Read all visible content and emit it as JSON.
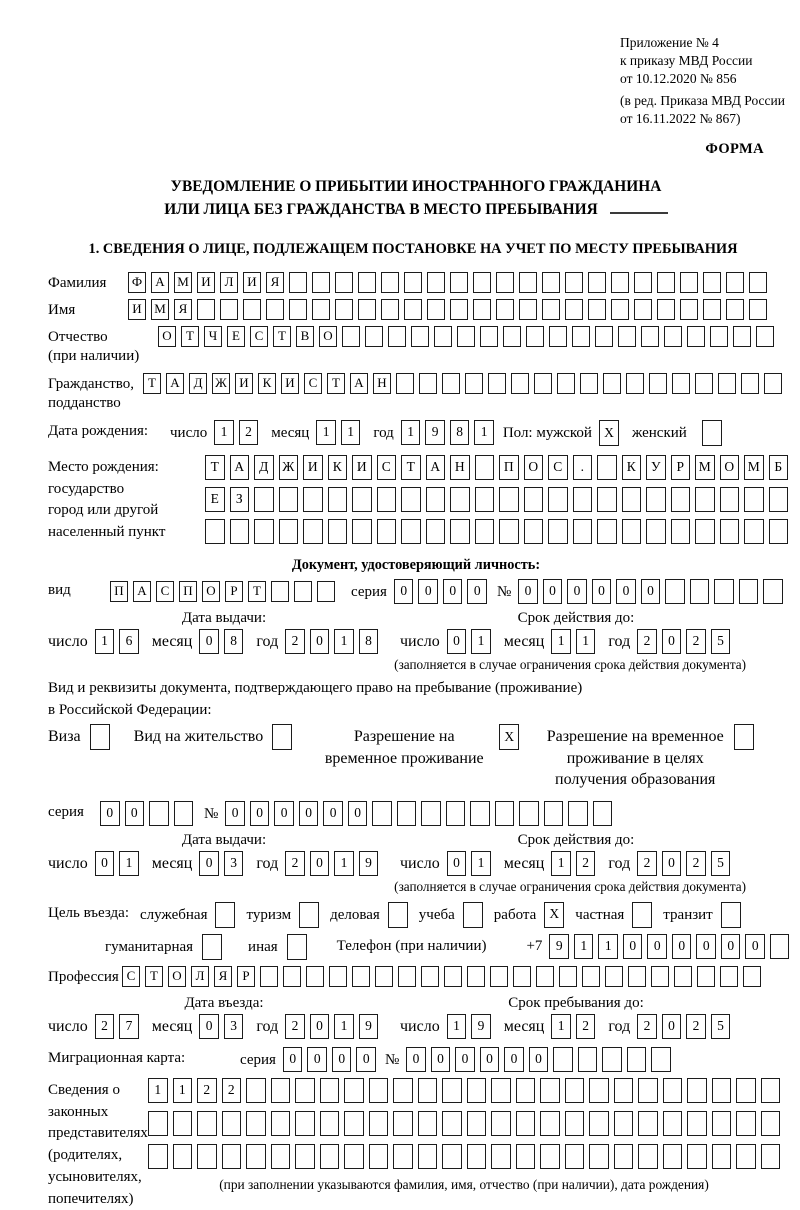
{
  "colors": {
    "text": "#000000",
    "background": "#ffffff",
    "cell_border": "#1c1c1c"
  },
  "header": {
    "lines1": [
      "Приложение № 4",
      "к приказу МВД России",
      "от 10.12.2020 № 856"
    ],
    "lines2": [
      "(в ред. Приказа МВД России",
      "от 16.11.2022 № 867)"
    ],
    "form": "ФОРМА"
  },
  "title": {
    "line1": "УВЕДОМЛЕНИЕ О ПРИБЫТИИ ИНОСТРАННОГО ГРАЖДАНИНА",
    "line2": "ИЛИ ЛИЦА БЕЗ ГРАЖДАНСТВА В МЕСТО ПРЕБЫВАНИЯ"
  },
  "section1": {
    "heading": "1. СВЕДЕНИЯ О ЛИЦЕ, ПОДЛЕЖАЩЕМ ПОСТАНОВКЕ НА УЧЕТ ПО МЕСТУ ПРЕБЫВАНИЯ"
  },
  "surname": {
    "label": "Фамилия",
    "cells": {
      "v": "ФАМИЛИЯ",
      "n": 28
    }
  },
  "firstname": {
    "label": "Имя",
    "cells": {
      "v": "ИМЯ",
      "n": 28
    }
  },
  "patronymic": {
    "label": "Отчество",
    "label2": "(при наличии)",
    "cells": {
      "v": "ОТЧЕСТВО",
      "n": 27
    }
  },
  "citizenship": {
    "label": "Гражданство,",
    "label2": "подданство",
    "cells": {
      "v": "ТАДЖИКИСТАН",
      "n": 28
    }
  },
  "birthdate": {
    "label": "Дата рождения:",
    "day_label": "число",
    "day": {
      "v": "12"
    },
    "month_label": "месяц",
    "month": {
      "v": "11"
    },
    "year_label": "год",
    "year": {
      "v": "1981"
    },
    "sex_label": "Пол: мужской",
    "male": {
      "v": "X",
      "n": 1
    },
    "female_label": "женский",
    "female": {
      "v": "",
      "n": 1
    }
  },
  "birthplace": {
    "label1": "Место рождения:",
    "label2": "государство",
    "label3": "город или другой",
    "label4": "населенный пункт",
    "row1": {
      "v": "ТАДЖИКИСТАН ПОС. КУРМОМБ",
      "n": 24
    },
    "row2": {
      "v": "ЕЗ",
      "n": 24
    },
    "row3": {
      "v": "",
      "n": 24
    }
  },
  "iddoc": {
    "heading": "Документ, удостоверяющий личность:",
    "kind_label": "вид",
    "kind": {
      "v": "ПАСПОРТ",
      "n": 10
    },
    "series_label": "серия",
    "series": {
      "v": "0000",
      "n": 4
    },
    "number_label": "№",
    "number": {
      "v": "000000",
      "n": 11
    },
    "issue_heading": "Дата выдачи:",
    "valid_heading": "Срок действия до:",
    "issue": {
      "day_label": "число",
      "day": {
        "v": "16"
      },
      "month_label": "месяц",
      "month": {
        "v": "08"
      },
      "year_label": "год",
      "year": {
        "v": "2018"
      }
    },
    "valid": {
      "day_label": "число",
      "day": {
        "v": "01"
      },
      "month_label": "месяц",
      "month": {
        "v": "11"
      },
      "year_label": "год",
      "year": {
        "v": "2025"
      }
    },
    "note": "(заполняется в случае ограничения срока действия документа)"
  },
  "resdoc": {
    "intro1": "Вид и реквизиты документа, подтверждающего право на пребывание (проживание)",
    "intro2": "в Российской Федерации:",
    "opt1_label": "Виза",
    "opt1": {
      "v": "",
      "n": 1
    },
    "opt2_label": "Вид на жительство",
    "opt2": {
      "v": "",
      "n": 1
    },
    "opt3_label": "Разрешение на временное проживание",
    "opt3": {
      "v": "X",
      "n": 1
    },
    "opt4_label": "Разрешение на временное проживание в целях получения образования",
    "opt4": {
      "v": "",
      "n": 1
    },
    "series_label": "серия",
    "series": {
      "v": "00",
      "n": 4
    },
    "number_label": "№",
    "number": {
      "v": "000000",
      "n": 16
    },
    "issue_heading": "Дата выдачи:",
    "valid_heading": "Срок действия до:",
    "issue": {
      "day_label": "число",
      "day": {
        "v": "01"
      },
      "month_label": "месяц",
      "month": {
        "v": "03"
      },
      "year_label": "год",
      "year": {
        "v": "2019"
      }
    },
    "valid": {
      "day_label": "число",
      "day": {
        "v": "01"
      },
      "month_label": "месяц",
      "month": {
        "v": "12"
      },
      "year_label": "год",
      "year": {
        "v": "2025"
      }
    },
    "note": "(заполняется в случае ограничения срока действия документа)"
  },
  "purpose": {
    "label": "Цель въезда:",
    "opts_line1": [
      {
        "label": "служебная",
        "box": {
          "v": "",
          "n": 1
        }
      },
      {
        "label": "туризм",
        "box": {
          "v": "",
          "n": 1
        }
      },
      {
        "label": "деловая",
        "box": {
          "v": "",
          "n": 1
        }
      },
      {
        "label": "учеба",
        "box": {
          "v": "",
          "n": 1
        }
      },
      {
        "label": "работа",
        "box": {
          "v": "X",
          "n": 1
        }
      },
      {
        "label": "частная",
        "box": {
          "v": "",
          "n": 1
        }
      },
      {
        "label": "транзит",
        "box": {
          "v": "",
          "n": 1
        }
      }
    ],
    "opts_line2": [
      {
        "label": "гуманитарная",
        "box": {
          "v": "",
          "n": 1
        }
      },
      {
        "label": "иная",
        "box": {
          "v": "",
          "n": 1
        }
      }
    ],
    "phone_label": "Телефон (при наличии)",
    "phone_prefix": "+7",
    "phone": {
      "v": "911000000",
      "n": 10
    }
  },
  "profession": {
    "label": "Профессия",
    "cells": {
      "v": "СТОЛЯР",
      "n": 28
    }
  },
  "entry": {
    "issue_heading": "Дата въезда:",
    "valid_heading": "Срок пребывания до:",
    "issue": {
      "day_label": "число",
      "day": {
        "v": "27"
      },
      "month_label": "месяц",
      "month": {
        "v": "03"
      },
      "year_label": "год",
      "year": {
        "v": "2019"
      }
    },
    "valid": {
      "day_label": "число",
      "day": {
        "v": "19"
      },
      "month_label": "месяц",
      "month": {
        "v": "12"
      },
      "year_label": "год",
      "year": {
        "v": "2025"
      }
    }
  },
  "migcard": {
    "label": "Миграционная карта:",
    "series_label": "серия",
    "series": {
      "v": "0000",
      "n": 4
    },
    "number_label": "№",
    "number": {
      "v": "000000",
      "n": 11
    }
  },
  "representatives": {
    "label_lines": [
      "Сведения о",
      "законных",
      "представителях",
      "(родителях,",
      "усыновителях,",
      "попечителях)"
    ],
    "row1": {
      "v": "1122",
      "n": 26
    },
    "row2": {
      "v": "",
      "n": 26
    },
    "row3": {
      "v": "",
      "n": 26
    },
    "note": "(при заполнении указываются фамилия, имя, отчество (при наличии), дата рождения)"
  }
}
